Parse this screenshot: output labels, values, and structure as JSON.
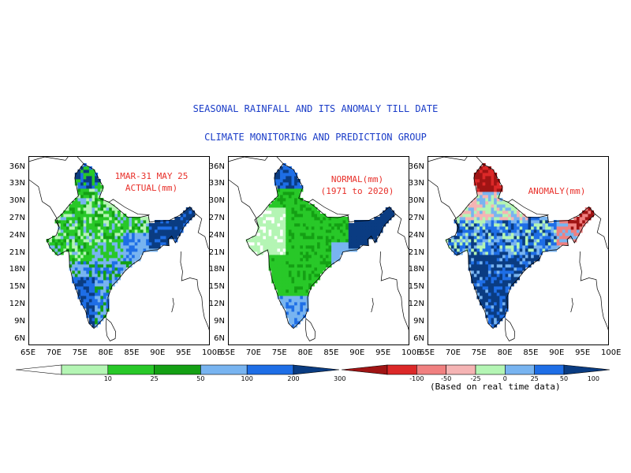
{
  "title": "SEASONAL RAINFALL AND ITS ANOMALY TILL DATE",
  "subtitle": "CLIMATE MONITORING AND PREDICTION GROUP",
  "panels": [
    {
      "label_line1": "1MAR-31 MAY 25",
      "label_line2": "ACTUAL(mm)",
      "scheme": "rain"
    },
    {
      "label_line1": "NORMAL(mm)",
      "label_line2": "(1971 to 2020)",
      "scheme": "normal"
    },
    {
      "label_line1": "ANOMALY(mm)",
      "label_line2": "",
      "scheme": "anomaly"
    }
  ],
  "map_extent": {
    "lon_min": 65,
    "lon_max": 100,
    "lat_min": 5,
    "lat_max": 38
  },
  "lat_ticks": [
    "36N",
    "33N",
    "30N",
    "27N",
    "24N",
    "21N",
    "18N",
    "15N",
    "12N",
    "9N",
    "6N"
  ],
  "lon_ticks": [
    "65E",
    "70E",
    "75E",
    "80E",
    "85E",
    "90E",
    "95E",
    "100E"
  ],
  "rain_colorbar": {
    "colors": [
      "#ffffff",
      "#b4f5b4",
      "#28c828",
      "#14a014",
      "#78b4f0",
      "#1e6ee6",
      "#0a3c82"
    ],
    "ticks": [
      "10",
      "25",
      "50",
      "100",
      "200",
      "300"
    ]
  },
  "anomaly_colorbar": {
    "colors": [
      "#a01414",
      "#dc2828",
      "#f08080",
      "#f5b4b4",
      "#b4f5b4",
      "#78b4f0",
      "#1e6ee6",
      "#0a3c82"
    ],
    "ticks": [
      "-100",
      "-50",
      "-25",
      "0",
      "25",
      "50",
      "100"
    ]
  },
  "colorbar_note": "(Based on real time data)",
  "colors": {
    "title_blue": "#1a3cc8",
    "label_red": "#e8302a"
  }
}
